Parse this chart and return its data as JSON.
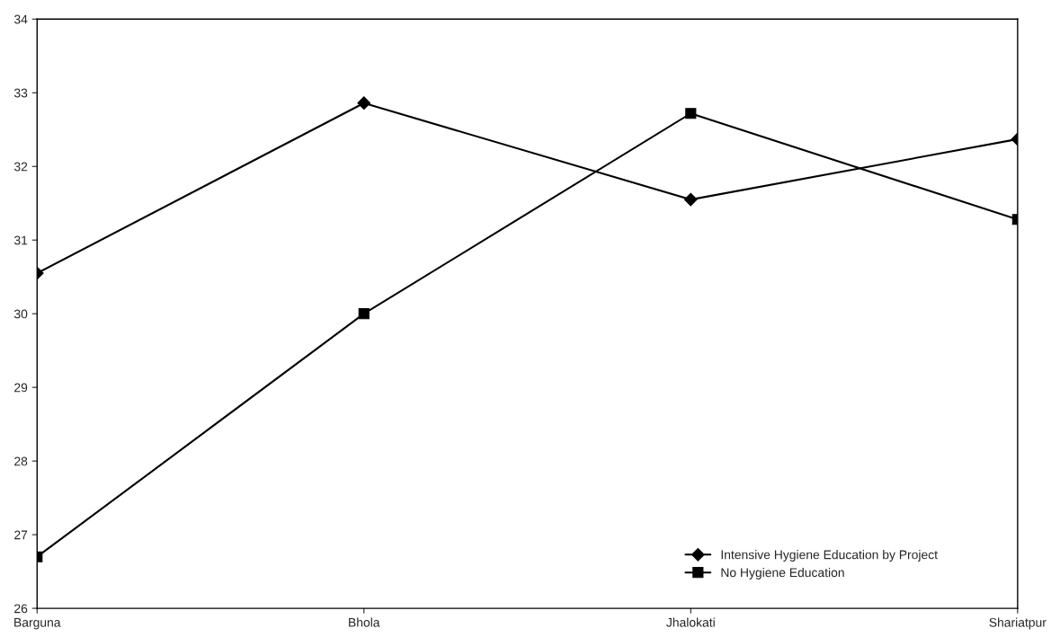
{
  "chart_data": {
    "type": "line",
    "categories": [
      "Barguna",
      "Bhola",
      "Jhalokati",
      "Shariatpur"
    ],
    "series": [
      {
        "name": "Intensive Hygiene Education by Project",
        "color": "#000000",
        "marker": "diamond",
        "values": [
          30.55,
          32.86,
          31.55,
          32.37
        ]
      },
      {
        "name": "No Hygiene Education",
        "color": "#000000",
        "marker": "square",
        "values": [
          26.7,
          30.0,
          32.72,
          31.28
        ]
      }
    ],
    "ylim": [
      26,
      34
    ],
    "yticks": [
      26,
      27,
      28,
      29,
      30,
      31,
      32,
      33,
      34
    ],
    "grid": false,
    "legend": "bottom right",
    "line_style": "solid"
  }
}
